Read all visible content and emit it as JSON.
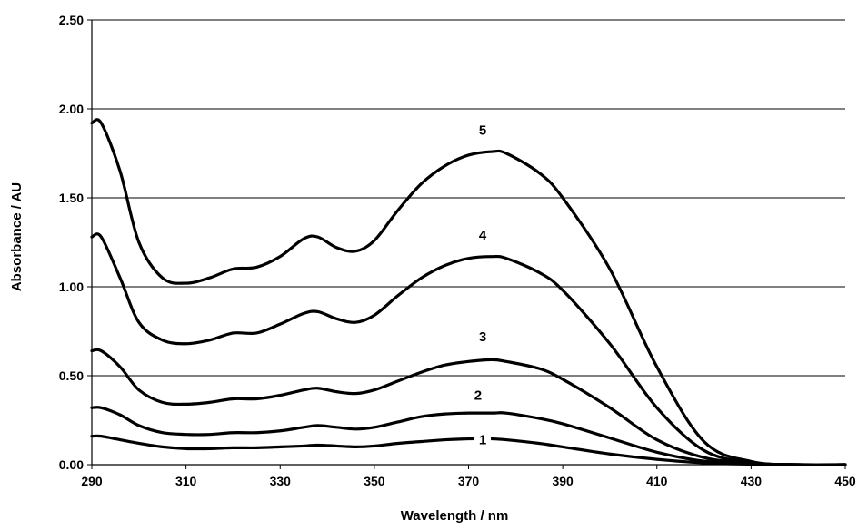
{
  "chart_data": {
    "type": "line",
    "title": "",
    "xlabel": "Wavelength / nm",
    "ylabel": "Absorbance / AU",
    "xlim": [
      290,
      450
    ],
    "ylim": [
      0,
      2.5
    ],
    "x_ticks": [
      "290",
      "310",
      "330",
      "350",
      "370",
      "390",
      "410",
      "430",
      "450"
    ],
    "y_ticks": [
      "0.00",
      "0.50",
      "1.00",
      "1.50",
      "2.00",
      "2.50"
    ],
    "grid": "horizontal",
    "line_color": "#000000",
    "series": [
      {
        "name": "1",
        "label_at": [
          373,
          0.14
        ],
        "x": [
          290,
          292,
          296,
          300,
          305,
          310,
          315,
          320,
          325,
          330,
          335,
          338,
          342,
          346,
          350,
          355,
          360,
          365,
          370,
          375,
          378,
          385,
          390,
          400,
          410,
          420,
          430,
          440,
          450
        ],
        "y": [
          0.16,
          0.16,
          0.14,
          0.12,
          0.1,
          0.09,
          0.09,
          0.095,
          0.095,
          0.1,
          0.105,
          0.11,
          0.105,
          0.1,
          0.105,
          0.12,
          0.13,
          0.14,
          0.145,
          0.145,
          0.14,
          0.12,
          0.1,
          0.06,
          0.03,
          0.01,
          0.003,
          0.0,
          0.0
        ]
      },
      {
        "name": "2",
        "label_at": [
          372,
          0.39
        ],
        "x": [
          290,
          292,
          296,
          300,
          305,
          310,
          315,
          320,
          325,
          330,
          335,
          338,
          342,
          346,
          350,
          355,
          360,
          365,
          370,
          375,
          378,
          385,
          390,
          400,
          410,
          420,
          430,
          440,
          450
        ],
        "y": [
          0.32,
          0.32,
          0.28,
          0.22,
          0.18,
          0.17,
          0.17,
          0.18,
          0.18,
          0.19,
          0.21,
          0.22,
          0.21,
          0.2,
          0.21,
          0.24,
          0.27,
          0.285,
          0.29,
          0.29,
          0.29,
          0.26,
          0.23,
          0.15,
          0.07,
          0.02,
          0.005,
          0.0,
          0.0
        ]
      },
      {
        "name": "3",
        "label_at": [
          373,
          0.72
        ],
        "x": [
          290,
          292,
          296,
          300,
          305,
          310,
          315,
          320,
          325,
          330,
          335,
          338,
          342,
          346,
          350,
          355,
          360,
          365,
          370,
          375,
          378,
          385,
          390,
          400,
          410,
          420,
          430,
          440,
          450
        ],
        "y": [
          0.64,
          0.64,
          0.55,
          0.42,
          0.35,
          0.34,
          0.35,
          0.37,
          0.37,
          0.39,
          0.42,
          0.43,
          0.41,
          0.4,
          0.42,
          0.47,
          0.52,
          0.56,
          0.58,
          0.59,
          0.58,
          0.54,
          0.48,
          0.32,
          0.14,
          0.04,
          0.008,
          0.0,
          0.0
        ]
      },
      {
        "name": "4",
        "label_at": [
          373,
          1.29
        ],
        "x": [
          290,
          292,
          296,
          300,
          305,
          310,
          315,
          320,
          325,
          330,
          335,
          338,
          342,
          346,
          350,
          355,
          360,
          365,
          370,
          375,
          378,
          385,
          390,
          400,
          410,
          420,
          430,
          440,
          450
        ],
        "y": [
          1.28,
          1.28,
          1.05,
          0.8,
          0.7,
          0.68,
          0.7,
          0.74,
          0.74,
          0.79,
          0.85,
          0.86,
          0.82,
          0.8,
          0.84,
          0.95,
          1.05,
          1.12,
          1.16,
          1.17,
          1.16,
          1.08,
          0.98,
          0.68,
          0.32,
          0.08,
          0.012,
          0.0,
          0.0
        ]
      },
      {
        "name": "5",
        "label_at": [
          373,
          1.88
        ],
        "x": [
          290,
          292,
          296,
          300,
          305,
          310,
          315,
          320,
          325,
          330,
          335,
          338,
          342,
          346,
          350,
          355,
          360,
          365,
          370,
          375,
          378,
          385,
          390,
          400,
          410,
          420,
          430,
          440,
          450
        ],
        "y": [
          1.92,
          1.92,
          1.65,
          1.25,
          1.05,
          1.02,
          1.05,
          1.1,
          1.11,
          1.17,
          1.27,
          1.28,
          1.22,
          1.2,
          1.26,
          1.43,
          1.58,
          1.68,
          1.74,
          1.76,
          1.75,
          1.64,
          1.5,
          1.1,
          0.55,
          0.13,
          0.018,
          0.0,
          0.0
        ]
      }
    ]
  }
}
